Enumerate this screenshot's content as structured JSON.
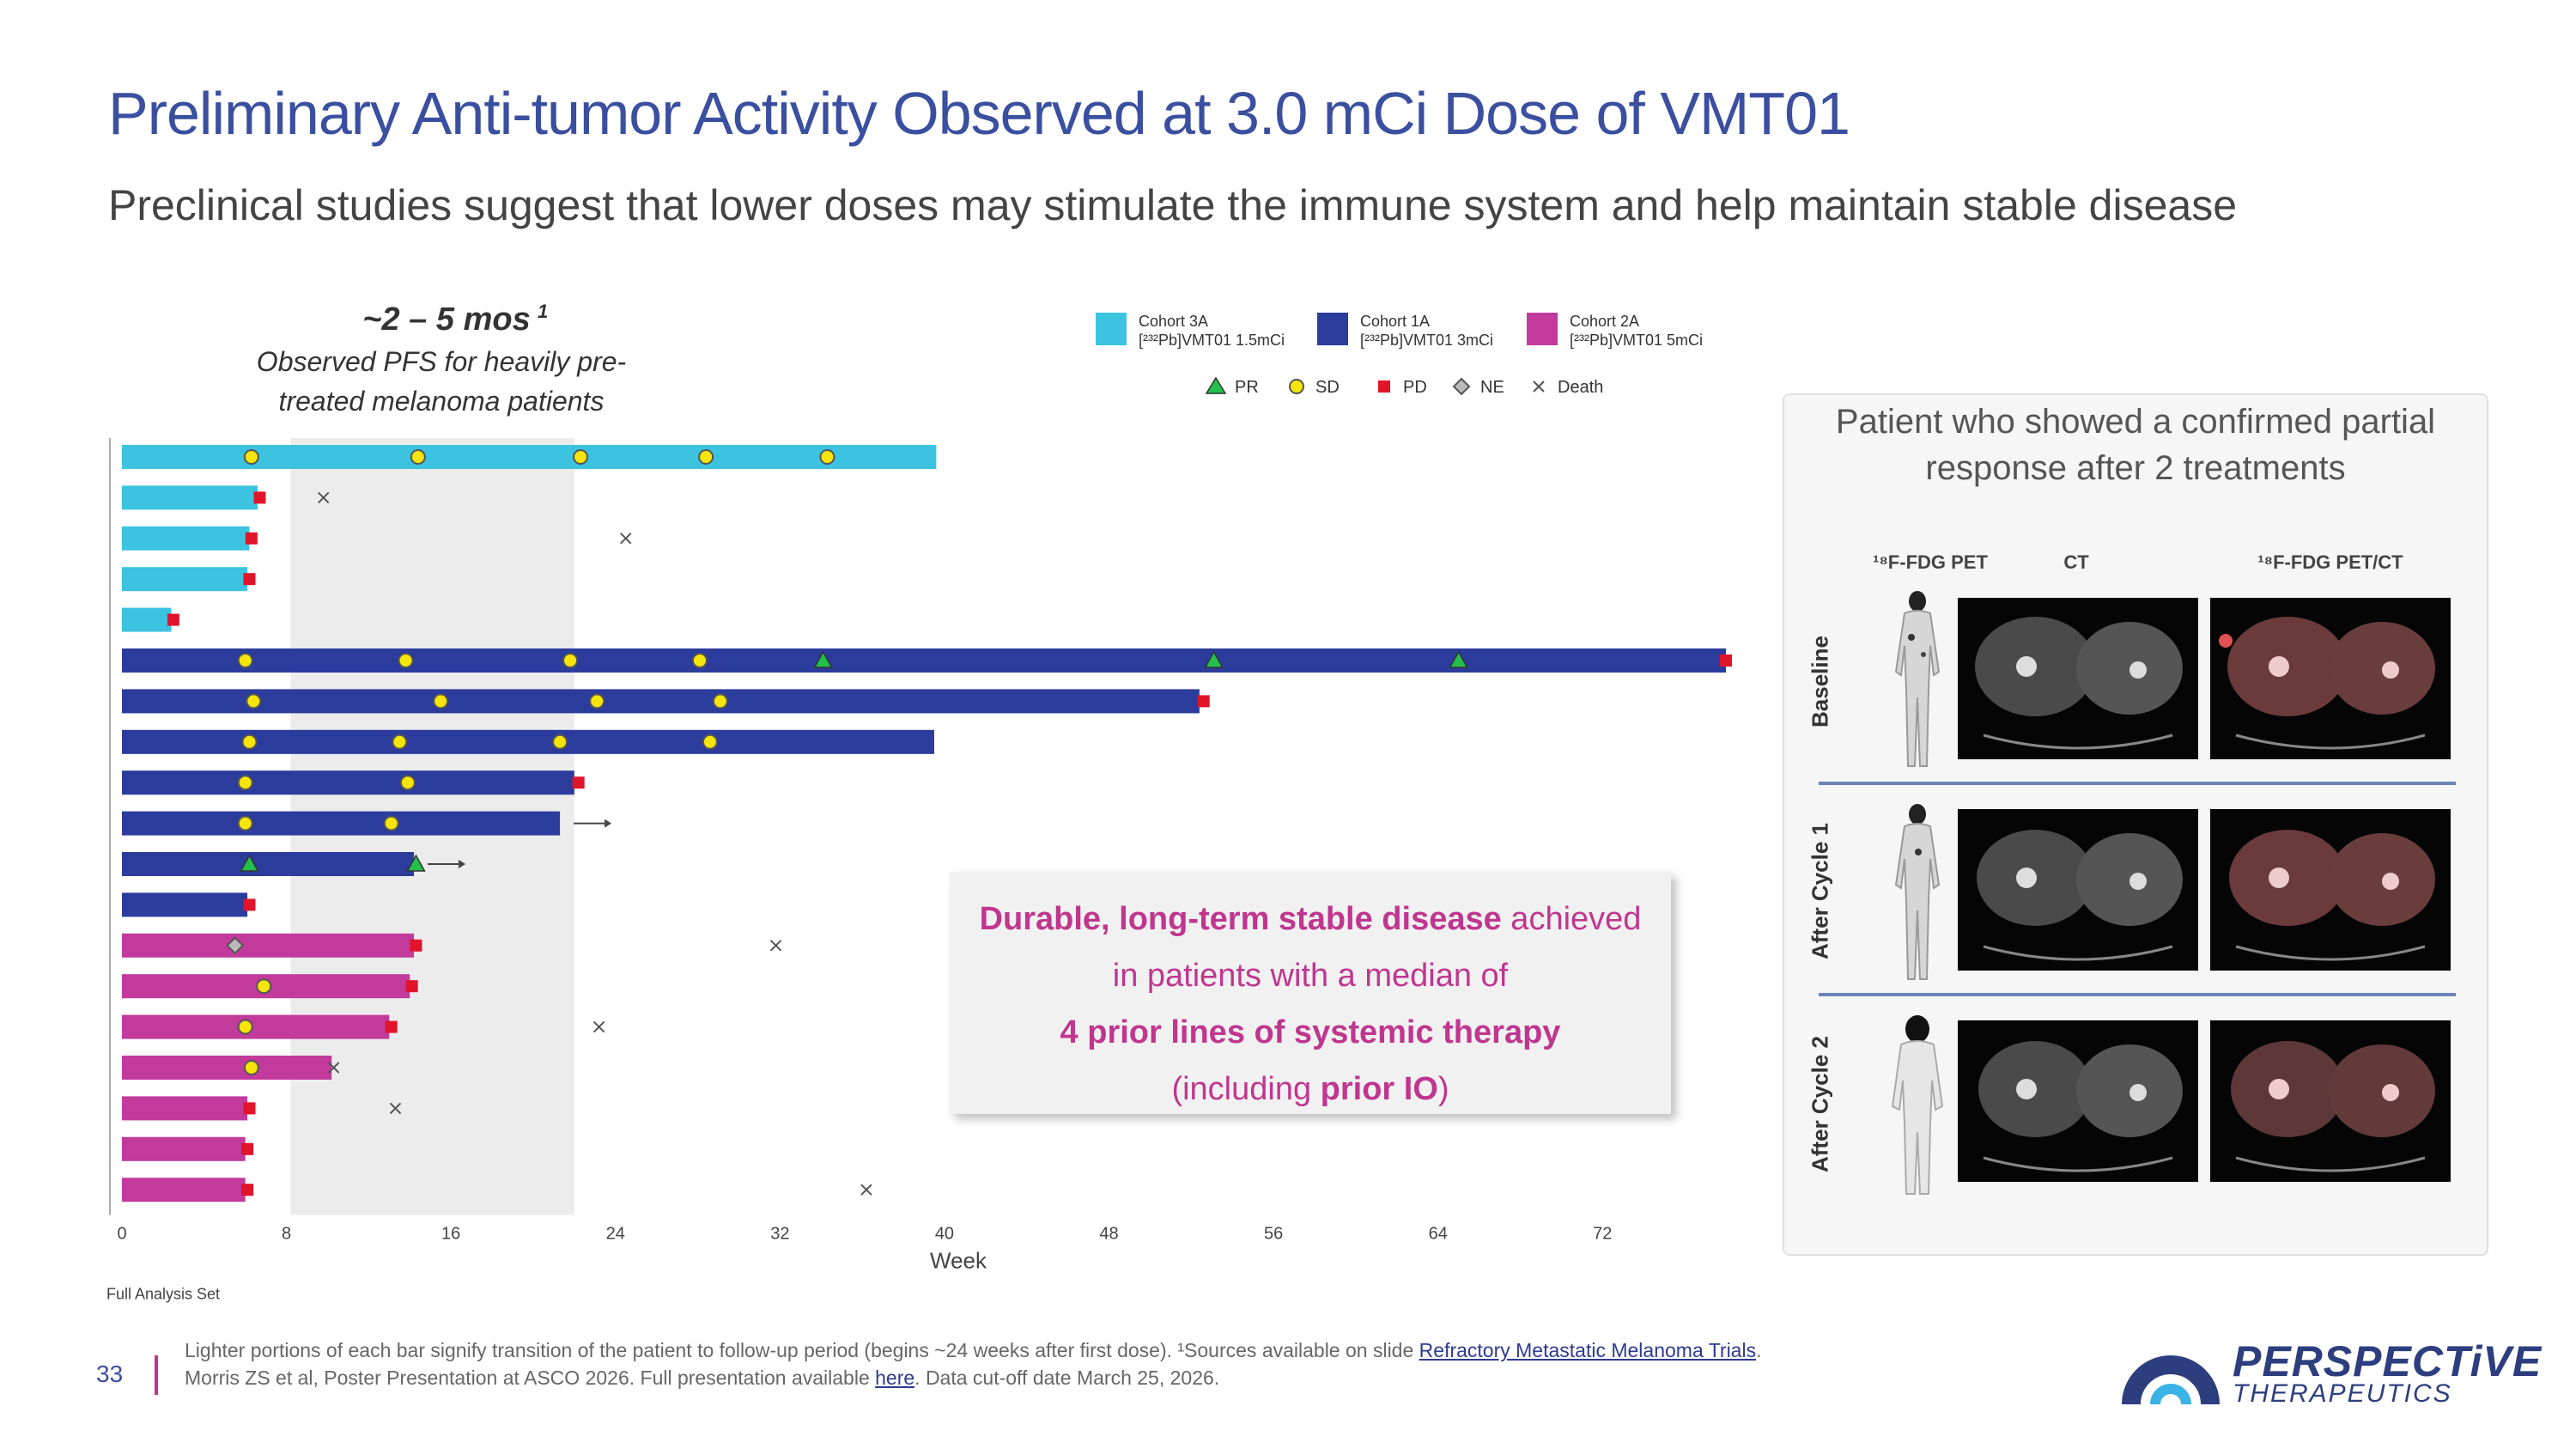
{
  "header": {
    "title": "Preliminary Anti-tumor Activity Observed at 3.0 mCi Dose of VMT01",
    "subtitle": "Preclinical studies suggest that lower doses may stimulate the immune system and help maintain stable disease"
  },
  "chart_data": {
    "type": "swimmer",
    "annotation_title": "~2 – 5 mos",
    "annotation_superscript": "1",
    "annotation_lines": [
      "Observed PFS for heavily pre-",
      "treated melanoma patients"
    ],
    "shaded_region": [
      8.2,
      22
    ],
    "xlabel": "Week",
    "xlim": [
      0,
      78
    ],
    "xticks": [
      0,
      8,
      16,
      24,
      32,
      40,
      48,
      56,
      64,
      72
    ],
    "bottom_note": "Full Analysis Set",
    "cohorts": [
      {
        "id": "3A",
        "name": "Cohort 3A",
        "sub": "[²³²Pb]VMT01 1.5mCi",
        "color": "#3cc3e0"
      },
      {
        "id": "1A",
        "name": "Cohort 1A",
        "sub": "[²³²Pb]VMT01 3mCi",
        "color": "#2b3c9c"
      },
      {
        "id": "2A",
        "name": "Cohort 2A",
        "sub": "[²³²Pb]VMT01 5mCi",
        "color": "#c23a9c"
      }
    ],
    "response_legend": [
      {
        "code": "PR",
        "label": "PR",
        "shape": "triangle",
        "color": "#22c04a"
      },
      {
        "code": "SD",
        "label": "SD",
        "shape": "circle",
        "color": "#f5e50a"
      },
      {
        "code": "PD",
        "label": "PD",
        "shape": "square",
        "color": "#e0142a"
      },
      {
        "code": "NE",
        "label": "NE",
        "shape": "diamond",
        "color": "#bbbbbb"
      },
      {
        "code": "Death",
        "label": "Death",
        "shape": "cross",
        "color": "#555555"
      }
    ],
    "patients": [
      {
        "cohort": "3A",
        "end": 39.6,
        "events": [
          {
            "t": 6.3,
            "type": "SD"
          },
          {
            "t": 14.4,
            "type": "SD"
          },
          {
            "t": 22.3,
            "type": "SD"
          },
          {
            "t": 28.4,
            "type": "SD"
          },
          {
            "t": 34.3,
            "type": "SD"
          }
        ]
      },
      {
        "cohort": "3A",
        "end": 6.6,
        "events": [
          {
            "t": 6.7,
            "type": "PD"
          },
          {
            "t": 9.8,
            "type": "Death"
          }
        ]
      },
      {
        "cohort": "3A",
        "end": 6.2,
        "events": [
          {
            "t": 6.3,
            "type": "PD"
          },
          {
            "t": 24.5,
            "type": "Death"
          }
        ]
      },
      {
        "cohort": "3A",
        "end": 6.1,
        "events": [
          {
            "t": 6.2,
            "type": "PD"
          }
        ]
      },
      {
        "cohort": "3A",
        "end": 2.4,
        "events": [
          {
            "t": 2.5,
            "type": "PD"
          }
        ]
      },
      {
        "cohort": "1A",
        "end": 78.0,
        "events": [
          {
            "t": 6.0,
            "type": "SD"
          },
          {
            "t": 13.8,
            "type": "SD"
          },
          {
            "t": 21.8,
            "type": "SD"
          },
          {
            "t": 28.1,
            "type": "SD"
          },
          {
            "t": 34.1,
            "type": "PR"
          },
          {
            "t": 53.1,
            "type": "PR"
          },
          {
            "t": 65.0,
            "type": "PR"
          },
          {
            "t": 78.0,
            "type": "PD"
          }
        ]
      },
      {
        "cohort": "1A",
        "end": 52.4,
        "events": [
          {
            "t": 6.4,
            "type": "SD"
          },
          {
            "t": 15.5,
            "type": "SD"
          },
          {
            "t": 23.1,
            "type": "SD"
          },
          {
            "t": 29.1,
            "type": "SD"
          },
          {
            "t": 52.6,
            "type": "PD"
          }
        ]
      },
      {
        "cohort": "1A",
        "end": 39.5,
        "events": [
          {
            "t": 6.2,
            "type": "SD"
          },
          {
            "t": 13.5,
            "type": "SD"
          },
          {
            "t": 21.3,
            "type": "SD"
          },
          {
            "t": 28.6,
            "type": "SD"
          }
        ]
      },
      {
        "cohort": "1A",
        "end": 22.0,
        "events": [
          {
            "t": 6.0,
            "type": "SD"
          },
          {
            "t": 13.9,
            "type": "SD"
          },
          {
            "t": 22.2,
            "type": "PD"
          }
        ]
      },
      {
        "cohort": "1A",
        "end": 21.3,
        "events": [
          {
            "t": 6.0,
            "type": "SD"
          },
          {
            "t": 13.1,
            "type": "SD"
          }
        ],
        "ongoing": true
      },
      {
        "cohort": "1A",
        "end": 14.2,
        "events": [
          {
            "t": 6.2,
            "type": "PR"
          },
          {
            "t": 14.3,
            "type": "PR"
          }
        ],
        "ongoing": true
      },
      {
        "cohort": "1A",
        "end": 6.1,
        "events": [
          {
            "t": 6.2,
            "type": "PD"
          }
        ]
      },
      {
        "cohort": "2A",
        "end": 14.2,
        "events": [
          {
            "t": 5.5,
            "type": "NE"
          },
          {
            "t": 14.3,
            "type": "PD"
          },
          {
            "t": 31.8,
            "type": "Death"
          }
        ]
      },
      {
        "cohort": "2A",
        "end": 14.0,
        "events": [
          {
            "t": 6.9,
            "type": "SD"
          },
          {
            "t": 14.1,
            "type": "PD"
          },
          {
            "t": 0,
            "type": "none"
          }
        ]
      },
      {
        "cohort": "2A",
        "end": 13.0,
        "events": [
          {
            "t": 6.0,
            "type": "SD"
          },
          {
            "t": 13.1,
            "type": "PD"
          },
          {
            "t": 23.2,
            "type": "Death"
          }
        ]
      },
      {
        "cohort": "2A",
        "end": 10.2,
        "events": [
          {
            "t": 6.3,
            "type": "SD"
          },
          {
            "t": 10.3,
            "type": "Death"
          }
        ]
      },
      {
        "cohort": "2A",
        "end": 6.1,
        "events": [
          {
            "t": 6.2,
            "type": "PD"
          },
          {
            "t": 13.3,
            "type": "Death"
          }
        ]
      },
      {
        "cohort": "2A",
        "end": 6.0,
        "events": [
          {
            "t": 6.1,
            "type": "PD"
          }
        ]
      },
      {
        "cohort": "2A",
        "end": 6.0,
        "events": [
          {
            "t": 6.1,
            "type": "PD"
          },
          {
            "t": 36.2,
            "type": "Death"
          }
        ]
      }
    ]
  },
  "callout": {
    "line1_bold": "Durable, long-term stable disease",
    "line1_rest": " achieved",
    "line2": "in patients with a median of",
    "line3_bold": "4 prior lines of systemic therapy",
    "line4_pre": "(including ",
    "line4_bold": "prior IO",
    "line4_post": ")"
  },
  "imaging_panel": {
    "title_line1": "Patient who showed a confirmed partial",
    "title_line2": "response after 2 treatments",
    "col_pet": "¹⁸F-FDG PET",
    "col_ct": "CT",
    "col_petct": "¹⁸F-FDG PET/CT",
    "row_baseline": "Baseline",
    "row_cycle1": "After Cycle 1",
    "row_cycle2": "After Cycle 2"
  },
  "footer": {
    "page_number": "33",
    "note1_pre": "Lighter portions of each bar signify transition of the patient to follow-up period (begins ~24 weeks after first dose). ¹Sources available on slide ",
    "note1_link": "Refractory Metastatic Melanoma Trials",
    "note1_post": ".",
    "note2_pre": "Morris ZS et al, Poster Presentation at ASCO 2026. Full presentation available ",
    "note2_link": "here",
    "note2_post": ". Data cut-off date March 25, 2026.",
    "brand": "PERSPECTiVE",
    "brand_sub": "THERAPEUTICS"
  }
}
